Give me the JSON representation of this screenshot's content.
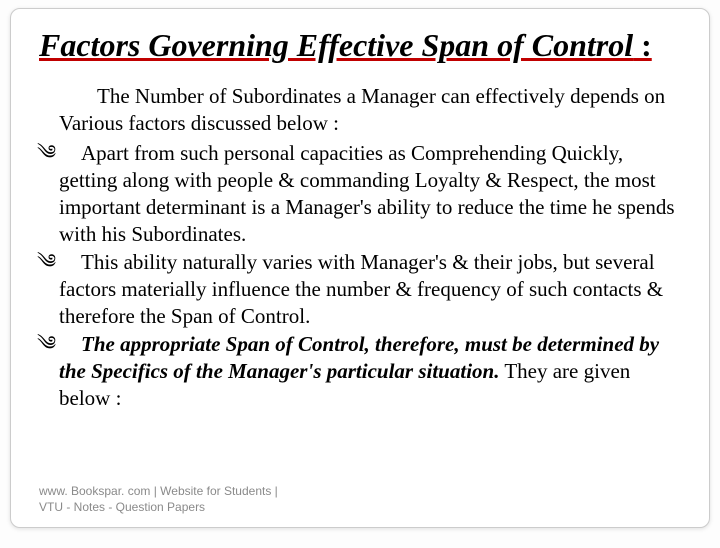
{
  "title_line": "Factors Governing Effective Span of Control",
  "title_trailer": " :",
  "intro": "The Number of Subordinates a Manager can effectively depends on Various factors discussed below :",
  "bullets": [
    {
      "prefix": "",
      "bold": "",
      "text": "Apart from such personal capacities as Comprehending Quickly, getting along with people & commanding Loyalty & Respect, the most important determinant is a Manager's ability to reduce the time he spends with his Subordinates."
    },
    {
      "prefix": "",
      "bold": "",
      "text": "This ability naturally varies with Manager's & their jobs, but several factors materially influence the number & frequency of such contacts & therefore the Span of Control."
    },
    {
      "prefix": "",
      "bold": "The appropriate Span of Control, therefore, must be determined by the Specifics of the Manager's particular situation.",
      "text": " They are given below :"
    }
  ],
  "footer_line1": "www. Bookspar. com | Website for Students |",
  "footer_line2": "VTU - Notes - Question Papers",
  "bullet_glyph": "༄"
}
